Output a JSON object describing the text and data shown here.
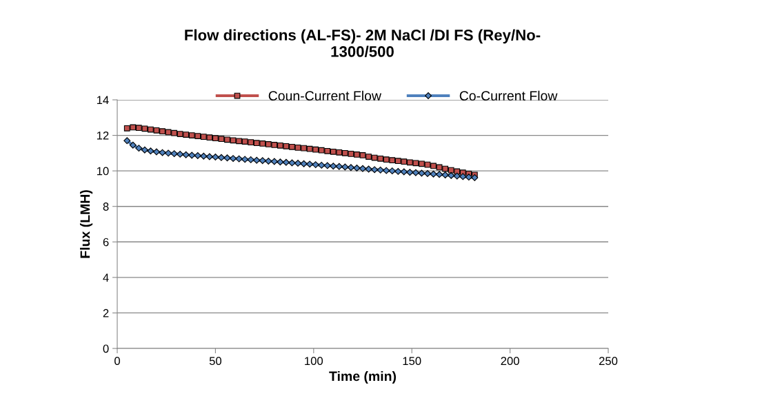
{
  "chart_data": {
    "type": "line",
    "title": "Flow directions (AL-FS)- 2M NaCl /DI FS (Rey/No-\n1300/500",
    "xlabel": "Time (min)",
    "ylabel": "Flux (LMH)",
    "x": [
      5,
      8,
      11,
      14,
      17,
      20,
      23,
      26,
      29,
      32,
      35,
      38,
      41,
      44,
      47,
      50,
      53,
      56,
      59,
      62,
      65,
      68,
      71,
      74,
      77,
      80,
      83,
      86,
      89,
      92,
      95,
      98,
      101,
      104,
      107,
      110,
      113,
      116,
      119,
      122,
      125,
      128,
      131,
      134,
      137,
      140,
      143,
      146,
      149,
      152,
      155,
      158,
      161,
      164,
      167,
      170,
      173,
      176,
      179,
      182
    ],
    "series": [
      {
        "name": "Coun-Current Flow",
        "color": "#c0504d",
        "marker": "square",
        "values": [
          12.4,
          12.45,
          12.42,
          12.38,
          12.33,
          12.28,
          12.23,
          12.18,
          12.13,
          12.08,
          12.04,
          12.0,
          11.96,
          11.92,
          11.88,
          11.84,
          11.8,
          11.76,
          11.72,
          11.68,
          11.65,
          11.61,
          11.57,
          11.54,
          11.5,
          11.46,
          11.43,
          11.39,
          11.35,
          11.31,
          11.28,
          11.24,
          11.2,
          11.16,
          11.12,
          11.08,
          11.04,
          11.0,
          10.96,
          10.92,
          10.88,
          10.8,
          10.74,
          10.69,
          10.64,
          10.6,
          10.56,
          10.52,
          10.48,
          10.44,
          10.4,
          10.35,
          10.28,
          10.2,
          10.12,
          10.04,
          9.97,
          9.9,
          9.84,
          9.78
        ]
      },
      {
        "name": "Co-Current Flow",
        "color": "#4f81bd",
        "marker": "diamond",
        "values": [
          11.7,
          11.45,
          11.28,
          11.18,
          11.12,
          11.07,
          11.03,
          11.0,
          10.97,
          10.94,
          10.91,
          10.88,
          10.86,
          10.83,
          10.8,
          10.78,
          10.75,
          10.73,
          10.7,
          10.68,
          10.65,
          10.63,
          10.6,
          10.58,
          10.55,
          10.53,
          10.5,
          10.48,
          10.45,
          10.43,
          10.4,
          10.38,
          10.35,
          10.32,
          10.3,
          10.27,
          10.25,
          10.22,
          10.19,
          10.16,
          10.13,
          10.1,
          10.07,
          10.05,
          10.02,
          10.0,
          9.97,
          9.95,
          9.92,
          9.9,
          9.87,
          9.85,
          9.82,
          9.8,
          9.77,
          9.74,
          9.71,
          9.68,
          9.65,
          9.62
        ]
      }
    ],
    "xlim": [
      0,
      250
    ],
    "xticks": [
      0,
      50,
      100,
      150,
      200,
      250
    ],
    "ylim": [
      0,
      14
    ],
    "yticks": [
      0,
      2,
      4,
      6,
      8,
      10,
      12,
      14
    ],
    "grid": "y",
    "legend": "top",
    "line_style": "solid"
  }
}
